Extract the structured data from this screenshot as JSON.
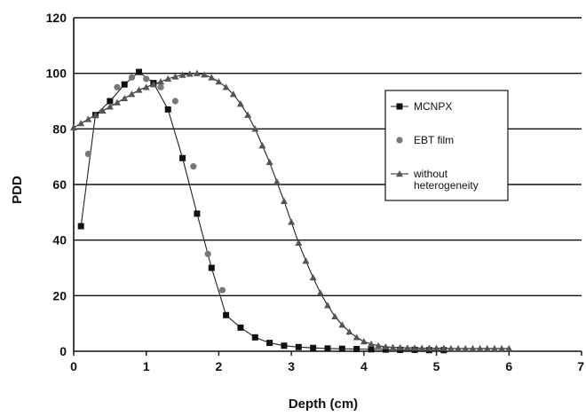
{
  "chart_data": {
    "type": "scatter",
    "title": "",
    "xlabel": "Depth (cm)",
    "ylabel": "PDD",
    "xlim": [
      0,
      7
    ],
    "ylim": [
      0,
      120
    ],
    "x_ticks": [
      "0",
      "1",
      "2",
      "3",
      "4",
      "5",
      "6",
      "7"
    ],
    "y_ticks": [
      "0",
      "20",
      "40",
      "60",
      "80",
      "100",
      "120"
    ],
    "grid": "horizontal",
    "legend_position": "right",
    "series": [
      {
        "name": "MCNPX",
        "marker": "square",
        "color": "#111111",
        "line": true,
        "x": [
          0.1,
          0.3,
          0.5,
          0.7,
          0.9,
          1.1,
          1.3,
          1.5,
          1.7,
          1.9,
          2.1,
          2.3,
          2.5,
          2.7,
          2.9,
          3.1,
          3.3,
          3.5,
          3.7,
          3.9,
          4.1,
          4.3,
          4.5,
          4.7,
          4.9,
          5.1
        ],
        "y": [
          45,
          85,
          90,
          96,
          100.5,
          96.5,
          87,
          69.5,
          49.5,
          30,
          13,
          8.5,
          5,
          3,
          2,
          1.5,
          1.2,
          1,
          0.9,
          0.8,
          0.7,
          0.6,
          0.5,
          0.5,
          0.4,
          0.4
        ]
      },
      {
        "name": "EBT film",
        "marker": "circle",
        "color": "#777777",
        "line": false,
        "x": [
          0.2,
          0.6,
          0.8,
          1.0,
          1.2,
          1.4,
          1.65,
          1.85,
          2.05
        ],
        "y": [
          71,
          95,
          98.5,
          98,
          95,
          90,
          66.5,
          35,
          22
        ]
      },
      {
        "name": "without heterogeneity",
        "marker": "triangle",
        "color": "#555555",
        "line": true,
        "x": [
          0,
          0.1,
          0.2,
          0.3,
          0.4,
          0.5,
          0.6,
          0.7,
          0.8,
          0.9,
          1.0,
          1.1,
          1.2,
          1.3,
          1.4,
          1.5,
          1.6,
          1.7,
          1.8,
          1.9,
          2.0,
          2.1,
          2.2,
          2.3,
          2.4,
          2.5,
          2.6,
          2.7,
          2.8,
          2.9,
          3.0,
          3.1,
          3.2,
          3.3,
          3.4,
          3.5,
          3.6,
          3.7,
          3.8,
          3.9,
          4.0,
          4.1,
          4.2,
          4.3,
          4.4,
          4.5,
          4.6,
          4.7,
          4.8,
          4.9,
          5.0,
          5.1,
          5.2,
          5.3,
          5.4,
          5.5,
          5.6,
          5.7,
          5.8,
          5.9,
          6.0
        ],
        "y": [
          80.5,
          82,
          83.5,
          85,
          86.5,
          88,
          89.5,
          91,
          92.5,
          94,
          95,
          96,
          97,
          98,
          98.8,
          99.4,
          99.8,
          100,
          99.5,
          98.5,
          97,
          95,
          92.5,
          89,
          85,
          80,
          74,
          68,
          61,
          54,
          46.5,
          39,
          32.5,
          26.5,
          21,
          16.5,
          12.5,
          9.5,
          7,
          5,
          3.5,
          2.6,
          2,
          1.6,
          1.4,
          1.3,
          1.2,
          1.2,
          1.1,
          1.1,
          1.1,
          1.1,
          1.0,
          1.0,
          1.0,
          1.0,
          1.0,
          1.0,
          1.0,
          1.0,
          1.0
        ]
      }
    ],
    "legend": [
      {
        "label": "MCNPX",
        "marker": "square"
      },
      {
        "label": "EBT film",
        "marker": "circle"
      },
      {
        "label": "without\nheterogeneity",
        "marker": "triangle"
      }
    ]
  }
}
